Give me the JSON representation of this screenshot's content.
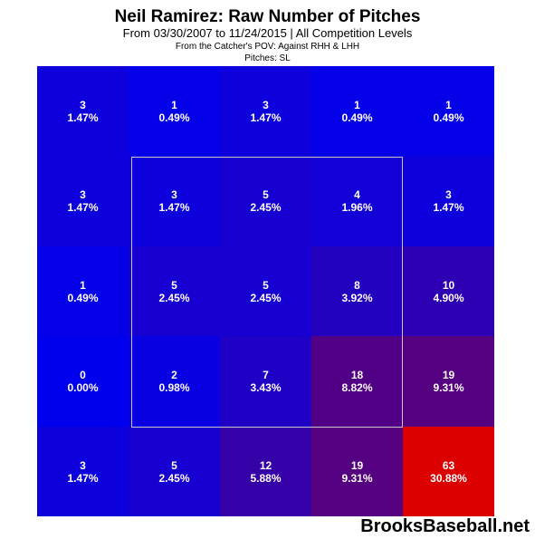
{
  "chart_data": {
    "type": "heatmap",
    "title": "Neil Ramirez: Raw Number of Pitches",
    "subtitle": "From 03/30/2007 to 11/24/2015 | All Competition Levels",
    "notes": [
      "From the Catcher's POV:  Against RHH & LHH",
      "Pitches:  SL"
    ],
    "rows": 5,
    "cols": 5,
    "counts": [
      [
        3,
        1,
        3,
        1,
        1
      ],
      [
        3,
        3,
        5,
        4,
        3
      ],
      [
        1,
        5,
        5,
        8,
        10
      ],
      [
        0,
        2,
        7,
        18,
        19
      ],
      [
        3,
        5,
        12,
        19,
        63
      ]
    ],
    "percents": [
      [
        "1.47%",
        "0.49%",
        "1.47%",
        "0.49%",
        "0.49%"
      ],
      [
        "1.47%",
        "1.47%",
        "2.45%",
        "1.96%",
        "1.47%"
      ],
      [
        "0.49%",
        "2.45%",
        "2.45%",
        "3.92%",
        "4.90%"
      ],
      [
        "0.00%",
        "0.98%",
        "3.43%",
        "8.82%",
        "9.31%"
      ],
      [
        "1.47%",
        "2.45%",
        "5.88%",
        "9.31%",
        "30.88%"
      ]
    ],
    "strike_zone": "center 3x3 outlined",
    "colors": {
      "low": "#0000ee",
      "high": "#dd0000",
      "zone_outline": "#c8c8c8"
    }
  },
  "watermark": "BrooksBaseball.net"
}
